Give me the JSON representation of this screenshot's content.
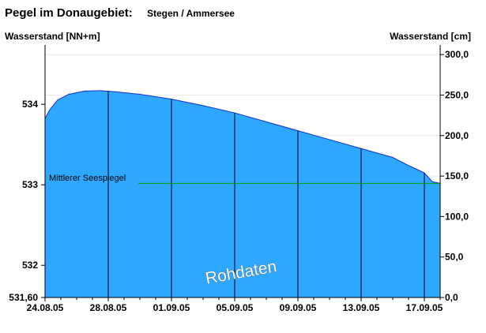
{
  "chart_data": {
    "type": "area",
    "title": "Pegel im Donaugebiet:",
    "subtitle": "Stegen / Ammersee",
    "ylabel_left": "Wasserstand [NN+m]",
    "ylabel_right": "Wasserstand [cm]",
    "watermark": "Rohdaten",
    "x_ticks": [
      "24.08.05",
      "28.08.05",
      "01.09.05",
      "05.09.05",
      "09.09.05",
      "13.09.05",
      "17.09.05"
    ],
    "x_range_days": [
      0,
      25
    ],
    "y_left_ticks": [
      "534",
      "533",
      "532",
      "531,60"
    ],
    "y_left_values": [
      534,
      533,
      532,
      531.6
    ],
    "y_left_range": [
      531.6,
      534.6
    ],
    "y_right_ticks": [
      "0,0",
      "50,0",
      "100,0",
      "150,0",
      "200,0",
      "250,0",
      "300,0"
    ],
    "y_right_values": [
      0,
      50,
      100,
      150,
      200,
      250,
      300
    ],
    "y_right_range": [
      0,
      312
    ],
    "grid": true,
    "series": [
      {
        "name": "Wasserstand",
        "color": "#2ea8ff",
        "x_days": [
          0,
          0.3,
          0.8,
          1.5,
          2.5,
          3.5,
          4.5,
          6,
          8,
          10,
          12,
          14,
          16,
          18,
          20,
          22,
          23,
          24,
          24.5,
          25
        ],
        "values_cm": [
          221,
          232,
          244,
          251,
          255,
          255.5,
          254,
          251,
          245,
          237,
          228,
          217,
          206,
          195,
          184,
          173,
          163,
          154,
          143,
          141
        ]
      }
    ],
    "reference_line": {
      "label": "Mittlerer Seespiegel",
      "value_cm": 141,
      "color": "#00a000",
      "x_start_days": 5.9
    }
  }
}
